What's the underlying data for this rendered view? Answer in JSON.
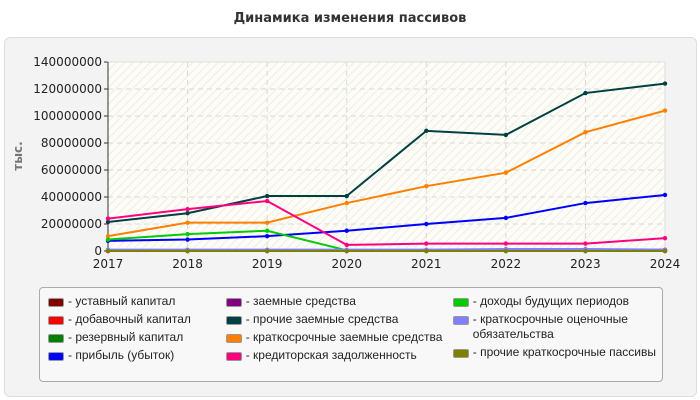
{
  "chart_data": {
    "type": "line",
    "title": "Динамика изменения пассивов",
    "ylabel": "тыс.",
    "xlabel": "",
    "x": [
      "2017",
      "2018",
      "2019",
      "2020",
      "2021",
      "2022",
      "2023",
      "2024"
    ],
    "ylim": [
      0,
      140000000
    ],
    "yticks": [
      "0",
      "20000000",
      "40000000",
      "60000000",
      "80000000",
      "100000000",
      "120000000",
      "140000000"
    ],
    "grid": true,
    "legend_position": "bottom",
    "series": [
      {
        "name": "уставный капитал",
        "color": "#800000",
        "values": [
          0,
          0,
          0,
          0,
          0,
          0,
          0,
          0
        ]
      },
      {
        "name": "добавочный капитал",
        "color": "#ff0000",
        "values": [
          0,
          0,
          0,
          0,
          0,
          0,
          500000,
          1000000
        ]
      },
      {
        "name": "резервный капитал",
        "color": "#008000",
        "values": [
          0,
          0,
          0,
          0,
          0,
          0,
          0,
          0
        ]
      },
      {
        "name": "прибыль (убыток)",
        "color": "#0000ff",
        "values": [
          7500000,
          8500000,
          11000000,
          15000000,
          20000000,
          24500000,
          35500000,
          41500000
        ]
      },
      {
        "name": "заемные средства",
        "color": "#800080",
        "values": [
          0,
          0,
          0,
          0,
          0,
          0,
          0,
          0
        ]
      },
      {
        "name": "прочие заемные средства",
        "color": "#004040",
        "values": [
          21500000,
          28000000,
          40700000,
          40700000,
          89000000,
          86000000,
          117000000,
          124000000
        ]
      },
      {
        "name": "краткосрочные заемные средства",
        "color": "#ff8000",
        "values": [
          11000000,
          21000000,
          21000000,
          35500000,
          48000000,
          58000000,
          88000000,
          104000000
        ]
      },
      {
        "name": "кредиторская задолженность",
        "color": "#ff0080",
        "values": [
          24000000,
          31000000,
          37000000,
          4500000,
          5500000,
          5500000,
          5500000,
          9500000
        ]
      },
      {
        "name": "доходы будущих периодов",
        "color": "#00cc00",
        "values": [
          8500000,
          12500000,
          15000000,
          500000,
          null,
          null,
          null,
          null
        ]
      },
      {
        "name": "краткосрочные оценочные обязательства",
        "color": "#8080ff",
        "values": [
          1000000,
          1000000,
          1000000,
          1000000,
          1000000,
          1500000,
          1500000,
          1000000
        ]
      },
      {
        "name": "прочие краткосрочные пассивы",
        "color": "#808000",
        "values": [
          0,
          0,
          0,
          0,
          0,
          0,
          0,
          0
        ]
      }
    ]
  },
  "legend": {
    "columns": [
      [
        {
          "label": "- уставный капитал",
          "s": 0
        },
        {
          "label": "- добавочный капитал",
          "s": 1
        },
        {
          "label": "- резервный капитал",
          "s": 2
        },
        {
          "label": "- прибыль (убыток)",
          "s": 3
        }
      ],
      [
        {
          "label": "- заемные средства",
          "s": 4
        },
        {
          "label": "- прочие заемные средства",
          "s": 5
        },
        {
          "label": "- краткосрочные заемные средства",
          "s": 6
        },
        {
          "label": "- кредиторская задолженность",
          "s": 7
        }
      ],
      [
        {
          "label": "- доходы будущих периодов",
          "s": 8
        },
        {
          "label": "- краткосрочные оценочные обязательства",
          "s": 9
        },
        {
          "label": "- прочие краткосрочные пассивы",
          "s": 10
        }
      ]
    ]
  }
}
